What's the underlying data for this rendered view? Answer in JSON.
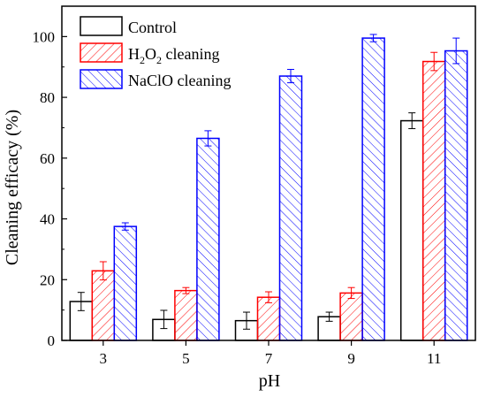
{
  "chart_data": {
    "type": "bar",
    "xlabel": "pH",
    "ylabel": "Cleaning efficacy (%)",
    "categories": [
      "3",
      "5",
      "7",
      "9",
      "11"
    ],
    "ylim": [
      0,
      110
    ],
    "yticks": [
      0,
      20,
      40,
      60,
      80,
      100
    ],
    "grid": false,
    "legend_position": "top-left",
    "series": [
      {
        "name": "Control",
        "legend_parts": [
          "Control"
        ],
        "color": "#000000",
        "hatch": "none",
        "values": [
          12.8,
          6.9,
          6.5,
          7.8,
          72.3
        ],
        "errors": [
          3.0,
          3.0,
          2.8,
          1.5,
          2.6
        ]
      },
      {
        "name": "H2O2 cleaning",
        "legend_parts": [
          "H",
          "2",
          "O",
          "2",
          " cleaning"
        ],
        "color": "#ff0000",
        "hatch": "forward",
        "values": [
          22.9,
          16.4,
          14.2,
          15.6,
          91.8
        ],
        "errors": [
          3.0,
          1.0,
          1.8,
          1.8,
          3.0
        ]
      },
      {
        "name": "NaClO cleaning",
        "legend_parts": [
          "NaClO cleaning"
        ],
        "color": "#0000ff",
        "hatch": "back",
        "values": [
          37.5,
          66.5,
          87.0,
          99.5,
          95.3
        ],
        "errors": [
          1.2,
          2.5,
          2.2,
          1.2,
          4.2
        ]
      }
    ]
  }
}
